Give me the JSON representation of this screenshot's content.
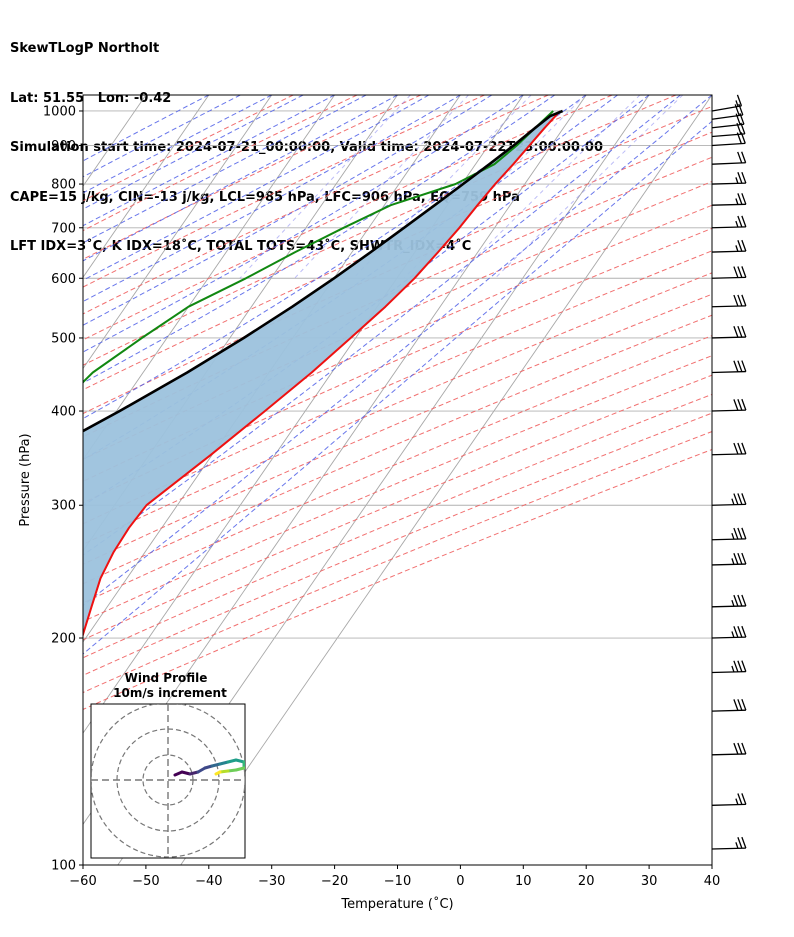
{
  "header": {
    "line1": "SkewTLogP Northolt",
    "line2": "Lat: 51.55   Lon: -0.42",
    "line3": "Simulation start time: 2024-07-21_00:00:00, Valid time: 2024-07-22T23:00:00.00",
    "line4": "CAPE=15 j/kg, CIN=-13 j/kg, LCL=985 hPa, LFC=906 hPa, EQ=759 hPa",
    "line5": "LFT IDX=3˚C, K IDX=18˚C, TOTAL TOTS=43˚C, SHWTR_IDX=4˚C"
  },
  "colors": {
    "temperature": "#ee1111",
    "dewpoint": "#118811",
    "parcel": "#000000",
    "cape_fill": "#9cc2dd",
    "dry_adiabat": "#f06060",
    "moist_adiabat": "#4f5fe8",
    "mixing_ratio": "#7b7bf0",
    "isotherm": "#a8a8a8",
    "isobar": "#b0b0b0",
    "special_isotherm": "#9040c0"
  },
  "chart_data": {
    "type": "line",
    "subtype": "skew-t log-p diagram",
    "xlabel": "Temperature (˚C)",
    "ylabel": "Pressure (hPa)",
    "xlim": [
      -60,
      40
    ],
    "ylim": [
      1050,
      100
    ],
    "y_scale": "log",
    "x_ticks": [
      "−60",
      "−50",
      "−40",
      "−30",
      "−20",
      "−10",
      "0",
      "10",
      "20",
      "30",
      "40"
    ],
    "y_ticks": [
      "100",
      "200",
      "300",
      "400",
      "500",
      "600",
      "700",
      "800",
      "900",
      "1000"
    ],
    "grid": true,
    "series": [
      {
        "key": "temperature",
        "pressure": [
          1000,
          950,
          900,
          850,
          800,
          750,
          700,
          650,
          600,
          550,
          500,
          450,
          400,
          350,
          300,
          280,
          260,
          240,
          220,
          200,
          180,
          160,
          140,
          120,
          100
        ],
        "values": [
          17.6,
          17,
          16.5,
          16,
          15.3,
          14.8,
          14.4,
          13.7,
          12.8,
          11.3,
          9.2,
          6.8,
          3.6,
          -0.2,
          -4.9,
          -5.2,
          -5.0,
          -4.2,
          -2.5,
          -0.6,
          2.6,
          6.8,
          9.7,
          11.8,
          13.4
        ]
      },
      {
        "key": "dewpoint",
        "pressure": [
          1000,
          950,
          900,
          850,
          800,
          750,
          700,
          650,
          600,
          550,
          500,
          450,
          400,
          350,
          300,
          280,
          260,
          240,
          220,
          200,
          180,
          170,
          160,
          140,
          120,
          100
        ],
        "values": [
          16.5,
          15.5,
          14.5,
          13,
          9,
          1,
          -4,
          -9,
          -14,
          -20,
          -24,
          -28,
          -30,
          -24,
          -19.5,
          -20.5,
          -21.5,
          -22.5,
          -23,
          -22.5,
          -22,
          -22.5,
          -25,
          -34,
          -32,
          -30
        ]
      },
      {
        "key": "parcel",
        "pressure": [
          1000,
          985,
          950,
          900,
          850,
          800,
          750,
          700,
          650,
          600,
          550,
          500,
          450,
          400,
          350,
          300,
          250,
          200,
          150,
          100
        ],
        "values": [
          18,
          16.6,
          15.5,
          14,
          12.2,
          10.2,
          8,
          5.6,
          3,
          0,
          -3.5,
          -7.8,
          -13,
          -19.5,
          -27.5,
          -37,
          -48.5,
          -62,
          -77.5,
          -95
        ]
      }
    ],
    "wind_barbs": {
      "pressure": [
        1000,
        975,
        950,
        925,
        900,
        850,
        800,
        750,
        700,
        650,
        600,
        550,
        500,
        450,
        400,
        350,
        300,
        270,
        250,
        220,
        200,
        180,
        160,
        140,
        120,
        105
      ],
      "speed_kt": [
        15,
        20,
        20,
        20,
        20,
        20,
        25,
        25,
        25,
        25,
        30,
        30,
        30,
        30,
        30,
        30,
        35,
        35,
        35,
        35,
        35,
        35,
        30,
        30,
        25,
        25
      ],
      "direction_deg": [
        240,
        245,
        250,
        255,
        258,
        262,
        265,
        265,
        265,
        265,
        265,
        265,
        265,
        265,
        265,
        265,
        265,
        265,
        265,
        265,
        265,
        265,
        265,
        265,
        265,
        265
      ]
    },
    "inset": {
      "title_line1": "Wind Profile",
      "title_line2": "10m/s increment"
    }
  }
}
